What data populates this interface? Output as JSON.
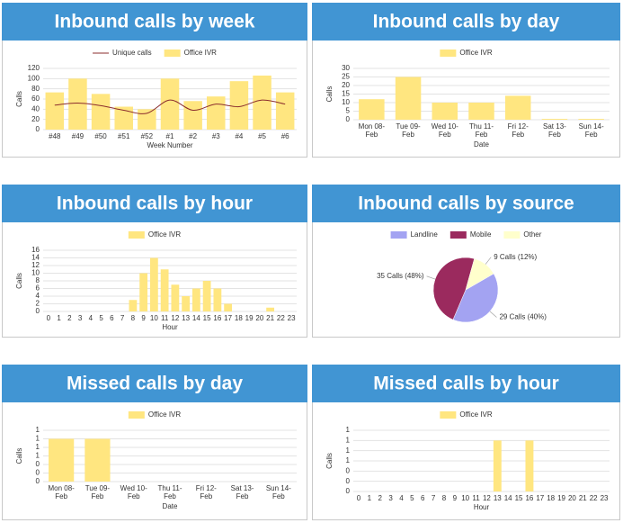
{
  "chart_data": [
    {
      "type": "bar",
      "title": "Inbound calls by week",
      "categories": [
        "#48",
        "#49",
        "#50",
        "#51",
        "#52",
        "#1",
        "#2",
        "#3",
        "#4",
        "#5",
        "#6"
      ],
      "series": [
        {
          "name": "Unique calls",
          "type": "line",
          "color": "#8b2d2d",
          "values": [
            48,
            52,
            47,
            38,
            32,
            58,
            38,
            50,
            45,
            58,
            50
          ]
        },
        {
          "name": "Office IVR",
          "type": "bar",
          "color": "#ffe680",
          "values": [
            73,
            100,
            70,
            45,
            40,
            100,
            56,
            65,
            95,
            106,
            73
          ]
        }
      ],
      "ylim": [
        0,
        120
      ],
      "yticks": [
        0,
        20,
        40,
        60,
        80,
        100,
        120
      ],
      "grid": true,
      "xlabel": "Week Number",
      "ylabel": "Calls"
    },
    {
      "type": "bar",
      "title": "Inbound calls by day",
      "categories": [
        "Mon 08-Feb",
        "Tue 09-Feb",
        "Wed 10-Feb",
        "Thu 11-Feb",
        "Fri 12-Feb",
        "Sat 13-Feb",
        "Sun 14-Feb"
      ],
      "series": [
        {
          "name": "Office IVR",
          "type": "bar",
          "color": "#ffe680",
          "values": [
            12,
            25,
            10,
            10,
            14,
            0.5,
            0.5
          ]
        }
      ],
      "ylim": [
        0,
        30
      ],
      "yticks": [
        0,
        5,
        10,
        15,
        20,
        25,
        30
      ],
      "grid": true,
      "xlabel": "Date",
      "ylabel": "Calls"
    },
    {
      "type": "bar",
      "title": "Inbound calls by hour",
      "categories": [
        "0",
        "1",
        "2",
        "3",
        "4",
        "5",
        "6",
        "7",
        "8",
        "9",
        "10",
        "11",
        "12",
        "13",
        "14",
        "15",
        "16",
        "17",
        "18",
        "19",
        "20",
        "21",
        "22",
        "23"
      ],
      "series": [
        {
          "name": "Office IVR",
          "type": "bar",
          "color": "#ffe680",
          "values": [
            0,
            0,
            0,
            0,
            0,
            0,
            0,
            0,
            3,
            10,
            14,
            11,
            7,
            4,
            6,
            8,
            6,
            2,
            0,
            0,
            0,
            1,
            0,
            0
          ]
        }
      ],
      "ylim": [
        0,
        16
      ],
      "yticks": [
        0,
        2,
        4,
        6,
        8,
        10,
        12,
        14,
        16
      ],
      "grid": true,
      "xlabel": "Hour",
      "ylabel": "Calls"
    },
    {
      "type": "pie",
      "title": "Inbound calls by source",
      "categories": [
        "Landline",
        "Mobile",
        "Other"
      ],
      "values": [
        29,
        35,
        9
      ],
      "value_labels": [
        "29 Calls (40%)",
        "35 Calls (48%)",
        "9 Calls (12%)"
      ],
      "colors": [
        "#a3a3f2",
        "#9b2a5e",
        "#ffffcc"
      ]
    },
    {
      "type": "bar",
      "title": "Missed calls by day",
      "categories": [
        "Mon 08-Feb",
        "Tue 09-Feb",
        "Wed 10-Feb",
        "Thu 11-Feb",
        "Fri 12-Feb",
        "Sat 13-Feb",
        "Sun 14-Feb"
      ],
      "series": [
        {
          "name": "Office IVR",
          "type": "bar",
          "color": "#ffe680",
          "values": [
            1,
            1,
            0,
            0,
            0,
            0,
            0
          ]
        }
      ],
      "ylim": [
        0,
        1.2
      ],
      "yticks": [
        0,
        {
          "value": 0.2,
          "label": "0"
        },
        {
          "value": 0.4,
          "label": "0"
        },
        {
          "value": 0.6,
          "label": "1"
        },
        {
          "value": 0.8,
          "label": "1"
        },
        1,
        {
          "value": 1.2,
          "label": "1"
        }
      ],
      "grid": true,
      "xlabel": "Date",
      "ylabel": "Calls"
    },
    {
      "type": "bar",
      "title": "Missed calls by hour",
      "categories": [
        "0",
        "1",
        "2",
        "3",
        "4",
        "5",
        "6",
        "7",
        "8",
        "9",
        "10",
        "11",
        "12",
        "13",
        "14",
        "15",
        "16",
        "17",
        "18",
        "19",
        "20",
        "21",
        "22",
        "23"
      ],
      "series": [
        {
          "name": "Office IVR",
          "type": "bar",
          "color": "#ffe680",
          "values": [
            0,
            0,
            0,
            0,
            0,
            0,
            0,
            0,
            0,
            0,
            0,
            0,
            0,
            1,
            0,
            0,
            1,
            0,
            0,
            0,
            0,
            0,
            0,
            0
          ]
        }
      ],
      "ylim": [
        0,
        1.2
      ],
      "yticks": [
        0,
        {
          "value": 0.2,
          "label": "0"
        },
        {
          "value": 0.4,
          "label": "0"
        },
        {
          "value": 0.6,
          "label": "1"
        },
        {
          "value": 0.8,
          "label": "1"
        },
        1,
        {
          "value": 1.2,
          "label": "1"
        }
      ],
      "grid": true,
      "xlabel": "Hour",
      "ylabel": "Calls"
    }
  ]
}
